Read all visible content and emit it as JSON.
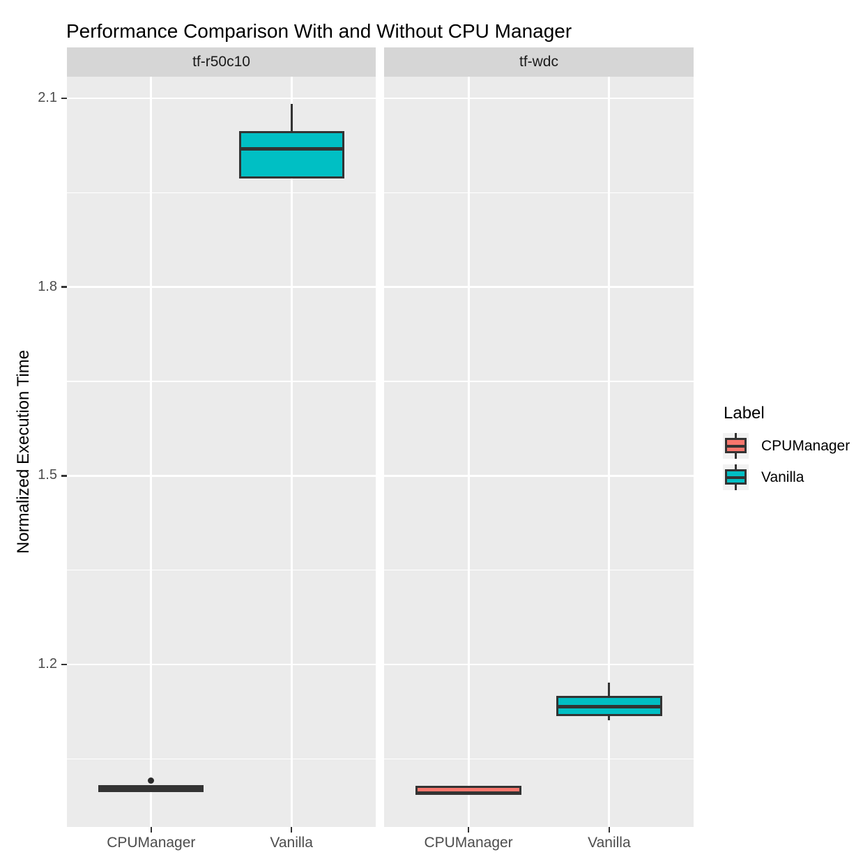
{
  "title": "Performance Comparison With and Without CPU Manager",
  "chart_data": {
    "type": "boxplot",
    "title": "Performance Comparison With and Without CPU Manager",
    "xlabel": "",
    "ylabel": "Normalized Execution Time",
    "x_categories": [
      "CPUManager",
      "Vanilla"
    ],
    "y_ticks": [
      1.2,
      1.5,
      1.8,
      2.1
    ],
    "y_minor_ticks": [
      1.05,
      1.35,
      1.65,
      1.95
    ],
    "ylim": [
      0.94,
      2.13
    ],
    "grid": "on",
    "legend_position": "right",
    "facets": [
      {
        "name": "tf-r50c10",
        "boxes": [
          {
            "group": "CPUManager",
            "min": 0.999,
            "q1": 0.999,
            "median": 1.003,
            "q3": 1.007,
            "max": 1.007,
            "outliers": [
              1.015
            ]
          },
          {
            "group": "Vanilla",
            "min": 1.974,
            "q1": 1.974,
            "median": 2.02,
            "q3": 2.046,
            "max": 2.091,
            "outliers": []
          }
        ]
      },
      {
        "name": "tf-wdc",
        "boxes": [
          {
            "group": "CPUManager",
            "min": 0.994,
            "q1": 0.994,
            "median": 0.996,
            "q3": 1.006,
            "max": 1.007,
            "outliers": []
          },
          {
            "group": "Vanilla",
            "min": 1.111,
            "q1": 1.12,
            "median": 1.133,
            "q3": 1.148,
            "max": 1.171,
            "outliers": []
          }
        ]
      }
    ],
    "legend": {
      "title": "Label",
      "entries": [
        {
          "label": "CPUManager",
          "color": "#F8766D"
        },
        {
          "label": "Vanilla",
          "color": "#00BFC4"
        }
      ]
    },
    "colors": {
      "cpumanager": "#F8766D",
      "vanilla": "#00BFC4",
      "panel_bg": "#EBEBEB",
      "strip_bg": "#D6D6D6",
      "grid": "#FFFFFF",
      "box_border": "#333333",
      "outlier": "#2B2B2B",
      "tick_mark": "#333333",
      "axis_text": "#4D4D4D",
      "strip_text": "#1A1A1A",
      "legend_key_bg": "#F2F2F2",
      "title_text": "#000000"
    }
  }
}
